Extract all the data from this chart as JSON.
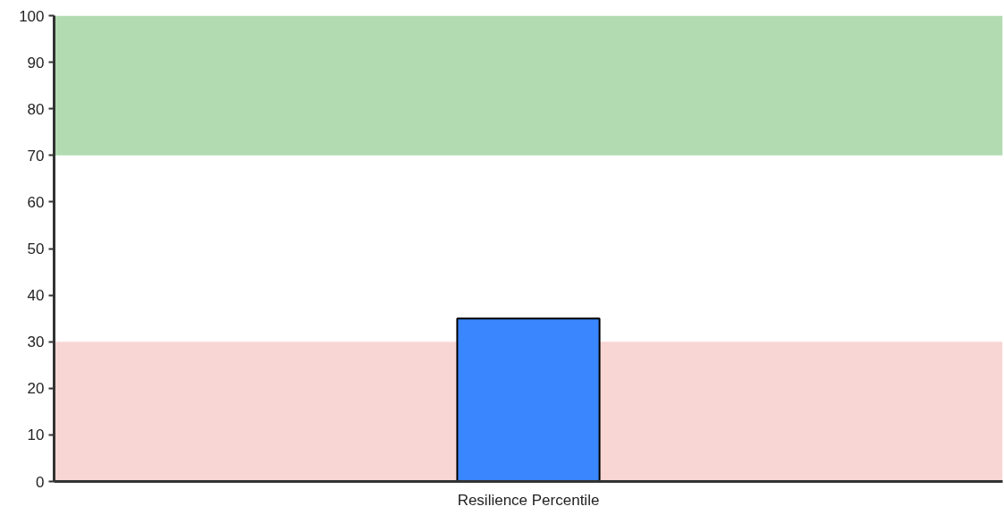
{
  "chart_data": {
    "type": "bar",
    "categories": [
      "Resilience Percentile"
    ],
    "values": [
      35
    ],
    "color": "#3a86ff",
    "ylim": [
      0,
      100
    ],
    "yticks": [
      0,
      10,
      20,
      30,
      40,
      50,
      60,
      70,
      80,
      90,
      100
    ],
    "bands": [
      {
        "axis": "y",
        "from": 70,
        "to": 100,
        "color": "#b2dbb2"
      },
      {
        "axis": "y",
        "from": 0,
        "to": 30,
        "color": "#f8d6d4"
      }
    ]
  }
}
